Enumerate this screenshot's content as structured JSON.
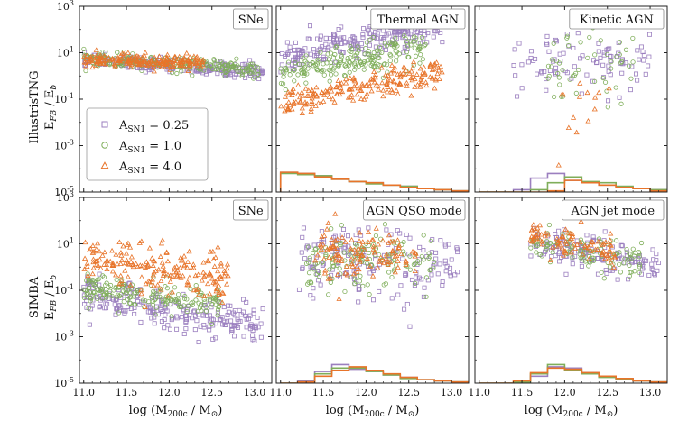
{
  "figure": {
    "row_labels": [
      "IllustrisTNG",
      "SIMBA"
    ],
    "ylabel": "E_FB / E_b",
    "xlabel": "log (M_200c / M_⊙)",
    "legend": {
      "placement": "lower-left of top-left panel",
      "entries": [
        {
          "label": "A_SN1 = 0.25",
          "marker": "square",
          "color": "#9b7fbf"
        },
        {
          "label": "A_SN1 = 1.0",
          "marker": "circle",
          "color": "#7fae5a"
        },
        {
          "label": "A_SN1 = 4.0",
          "marker": "triangle",
          "color": "#e8742a"
        }
      ]
    },
    "colors": {
      "purple": "#9b7fbf",
      "green": "#7fae5a",
      "orange": "#e8742a"
    }
  },
  "chart_data": [
    {
      "type": "scatter",
      "title": "SNe",
      "row": 0,
      "col": 0,
      "ylog": true,
      "ylim": [
        1e-05,
        1000
      ],
      "xlim": [
        10.95,
        13.2
      ],
      "series": [
        {
          "name": "A_SN1 = 0.25",
          "cloud": {
            "x": [
              11.0,
              13.1
            ],
            "logy_start": 0.7,
            "logy_end": 0.2,
            "spread": 0.15,
            "n": 220
          },
          "color": "#9b7fbf"
        },
        {
          "name": "A_SN1 = 1.0",
          "cloud": {
            "x": [
              11.0,
              13.1
            ],
            "logy_start": 0.75,
            "logy_end": 0.25,
            "spread": 0.15,
            "n": 220
          },
          "color": "#7fae5a"
        },
        {
          "name": "A_SN1 = 4.0",
          "cloud": {
            "x": [
              11.0,
              12.4
            ],
            "logy_start": 0.65,
            "logy_end": 0.6,
            "spread": 0.15,
            "n": 200
          },
          "color": "#e8742a"
        }
      ],
      "histograms": []
    },
    {
      "type": "scatter",
      "title": "Thermal AGN",
      "row": 0,
      "col": 1,
      "ylog": true,
      "ylim": [
        1e-05,
        1000
      ],
      "xlim": [
        10.95,
        13.2
      ],
      "series": [
        {
          "name": "A_SN1 = 0.25",
          "cloud": {
            "x": [
              11.0,
              12.9
            ],
            "logy_start": 0.8,
            "logy_end": 2.2,
            "spread": 0.35,
            "n": 230
          },
          "color": "#9b7fbf"
        },
        {
          "name": "A_SN1 = 1.0",
          "cloud": {
            "x": [
              11.0,
              12.7
            ],
            "logy_start": 0.0,
            "logy_end": 1.3,
            "spread": 0.35,
            "n": 200
          },
          "color": "#7fae5a"
        },
        {
          "name": "A_SN1 = 4.0",
          "cloud": {
            "x": [
              11.0,
              12.9
            ],
            "logy_start": -1.2,
            "logy_end": 0.2,
            "spread": 0.3,
            "n": 210
          },
          "color": "#e8742a"
        }
      ],
      "histograms": [
        {
          "color": "#9b7fbf",
          "edges": [
            11.0,
            11.2,
            11.4,
            11.6,
            11.8,
            12.0,
            12.2,
            12.4,
            12.6,
            12.8,
            13.0,
            13.2
          ],
          "logy": [
            -4.15,
            -4.2,
            -4.3,
            -4.45,
            -4.55,
            -4.6,
            -4.7,
            -4.75,
            -4.85,
            -4.9,
            -4.95
          ]
        },
        {
          "color": "#7fae5a",
          "edges": [
            11.0,
            11.2,
            11.4,
            11.6,
            11.8,
            12.0,
            12.2,
            12.4,
            12.6,
            12.8,
            13.0,
            13.2
          ],
          "logy": [
            -4.2,
            -4.25,
            -4.3,
            -4.45,
            -4.55,
            -4.65,
            -4.7,
            -4.75,
            -4.85,
            -4.9,
            -4.95
          ]
        },
        {
          "color": "#e8742a",
          "edges": [
            11.0,
            11.2,
            11.4,
            11.6,
            11.8,
            12.0,
            12.2,
            12.4,
            12.6,
            12.8,
            13.0,
            13.2
          ],
          "logy": [
            -4.15,
            -4.2,
            -4.35,
            -4.45,
            -4.55,
            -4.6,
            -4.7,
            -4.8,
            -4.85,
            -4.9,
            -4.95
          ]
        }
      ]
    },
    {
      "type": "scatter",
      "title": "Kinetic AGN",
      "row": 0,
      "col": 2,
      "ylog": true,
      "ylim": [
        1e-05,
        1000
      ],
      "xlim": [
        10.95,
        13.2
      ],
      "series": [
        {
          "name": "A_SN1 = 0.25",
          "cloud": {
            "x": [
              11.4,
              13.0
            ],
            "logy_start": 0.5,
            "logy_end": 0.5,
            "spread": 0.6,
            "n": 90
          },
          "color": "#9b7fbf"
        },
        {
          "name": "A_SN1 = 1.0",
          "cloud": {
            "x": [
              11.8,
              12.8
            ],
            "logy_start": 0.3,
            "logy_end": 0.5,
            "spread": 0.8,
            "n": 50
          },
          "color": "#7fae5a"
        },
        {
          "name": "A_SN1 = 4.0",
          "cloud": {
            "x": [
              11.9,
              12.6
            ],
            "logy_start": -1.0,
            "logy_end": -1.5,
            "spread": 1.0,
            "n": 14
          },
          "color": "#e8742a"
        }
      ],
      "histograms": [
        {
          "color": "#9b7fbf",
          "edges": [
            11.0,
            11.2,
            11.4,
            11.6,
            11.8,
            12.0,
            12.2,
            12.4,
            12.6,
            12.8,
            13.0,
            13.2
          ],
          "logy": [
            -5.0,
            -5.0,
            -4.9,
            -4.4,
            -4.2,
            -4.5,
            -4.6,
            -4.7,
            -4.8,
            -4.85,
            -4.9
          ]
        },
        {
          "color": "#7fae5a",
          "edges": [
            11.0,
            11.2,
            11.4,
            11.6,
            11.8,
            12.0,
            12.2,
            12.4,
            12.6,
            12.8,
            13.0,
            13.2
          ],
          "logy": [
            -5.0,
            -5.0,
            -5.0,
            -4.9,
            -4.6,
            -4.35,
            -4.55,
            -4.6,
            -4.75,
            -4.85,
            -4.9
          ]
        },
        {
          "color": "#e8742a",
          "edges": [
            11.0,
            11.2,
            11.4,
            11.6,
            11.8,
            12.0,
            12.2,
            12.4,
            12.6,
            12.8,
            13.0,
            13.2
          ],
          "logy": [
            -5.0,
            -5.0,
            -5.0,
            -5.0,
            -4.95,
            -4.5,
            -4.6,
            -4.7,
            -4.8,
            -4.85,
            -4.95
          ]
        }
      ]
    },
    {
      "type": "scatter",
      "title": "SNe",
      "row": 1,
      "col": 0,
      "ylog": true,
      "ylim": [
        1e-05,
        1000
      ],
      "xlim": [
        10.95,
        13.2
      ],
      "series": [
        {
          "name": "A_SN1 = 0.25",
          "cloud": {
            "x": [
              11.0,
              13.1
            ],
            "logy_start": -1.1,
            "logy_end": -2.6,
            "spread": 0.4,
            "n": 230
          },
          "color": "#9b7fbf"
        },
        {
          "name": "A_SN1 = 1.0",
          "cloud": {
            "x": [
              11.0,
              12.6
            ],
            "logy_start": -0.9,
            "logy_end": -1.7,
            "spread": 0.35,
            "n": 190
          },
          "color": "#7fae5a"
        },
        {
          "name": "A_SN1 = 4.0",
          "cloud": {
            "x": [
              11.0,
              12.7
            ],
            "logy_start": 0.3,
            "logy_end": -0.6,
            "spread": 0.55,
            "n": 200
          },
          "color": "#e8742a"
        }
      ],
      "histograms": []
    },
    {
      "type": "scatter",
      "title": "AGN QSO mode",
      "row": 1,
      "col": 1,
      "ylog": true,
      "ylim": [
        1e-05,
        1000
      ],
      "xlim": [
        10.95,
        13.2
      ],
      "series": [
        {
          "name": "A_SN1 = 0.25",
          "cloud": {
            "x": [
              11.2,
              13.1
            ],
            "logy_start": 0.3,
            "logy_end": 0.0,
            "spread": 0.8,
            "n": 170
          },
          "color": "#9b7fbf"
        },
        {
          "name": "A_SN1 = 1.0",
          "cloud": {
            "x": [
              11.3,
              12.8
            ],
            "logy_start": 0.4,
            "logy_end": 0.3,
            "spread": 0.6,
            "n": 140
          },
          "color": "#7fae5a"
        },
        {
          "name": "A_SN1 = 4.0",
          "cloud": {
            "x": [
              11.4,
              12.6
            ],
            "logy_start": 0.6,
            "logy_end": 0.8,
            "spread": 0.6,
            "n": 120
          },
          "color": "#e8742a"
        }
      ],
      "histograms": [
        {
          "color": "#9b7fbf",
          "edges": [
            11.0,
            11.2,
            11.4,
            11.6,
            11.8,
            12.0,
            12.2,
            12.4,
            12.6,
            12.8,
            13.0,
            13.2
          ],
          "logy": [
            -5.0,
            -4.9,
            -4.5,
            -4.2,
            -4.4,
            -4.5,
            -4.65,
            -4.75,
            -4.85,
            -4.9,
            -4.95
          ]
        },
        {
          "color": "#7fae5a",
          "edges": [
            11.0,
            11.2,
            11.4,
            11.6,
            11.8,
            12.0,
            12.2,
            12.4,
            12.6,
            12.8,
            13.0,
            13.2
          ],
          "logy": [
            -5.0,
            -4.95,
            -4.6,
            -4.35,
            -4.35,
            -4.5,
            -4.65,
            -4.8,
            -4.85,
            -4.9,
            -4.95
          ]
        },
        {
          "color": "#e8742a",
          "edges": [
            11.0,
            11.2,
            11.4,
            11.6,
            11.8,
            12.0,
            12.2,
            12.4,
            12.6,
            12.8,
            13.0,
            13.2
          ],
          "logy": [
            -5.0,
            -4.95,
            -4.7,
            -4.45,
            -4.3,
            -4.45,
            -4.6,
            -4.75,
            -4.85,
            -4.9,
            -4.95
          ]
        }
      ]
    },
    {
      "type": "scatter",
      "title": "AGN jet mode",
      "row": 1,
      "col": 2,
      "ylog": true,
      "ylim": [
        1e-05,
        1000
      ],
      "xlim": [
        10.95,
        13.2
      ],
      "series": [
        {
          "name": "A_SN1 = 0.25",
          "cloud": {
            "x": [
              11.6,
              13.1
            ],
            "logy_start": 1.0,
            "logy_end": 0.1,
            "spread": 0.4,
            "n": 140
          },
          "color": "#9b7fbf"
        },
        {
          "name": "A_SN1 = 1.0",
          "cloud": {
            "x": [
              11.6,
              12.9
            ],
            "logy_start": 1.1,
            "logy_end": 0.3,
            "spread": 0.35,
            "n": 110
          },
          "color": "#7fae5a"
        },
        {
          "name": "A_SN1 = 4.0",
          "cloud": {
            "x": [
              11.6,
              12.6
            ],
            "logy_start": 1.3,
            "logy_end": 0.6,
            "spread": 0.3,
            "n": 90
          },
          "color": "#e8742a"
        }
      ],
      "histograms": [
        {
          "color": "#9b7fbf",
          "edges": [
            11.0,
            11.2,
            11.4,
            11.6,
            11.8,
            12.0,
            12.2,
            12.4,
            12.6,
            12.8,
            13.0,
            13.2
          ],
          "logy": [
            -5.0,
            -5.0,
            -4.95,
            -4.7,
            -4.3,
            -4.35,
            -4.55,
            -4.7,
            -4.8,
            -4.9,
            -4.95
          ]
        },
        {
          "color": "#7fae5a",
          "edges": [
            11.0,
            11.2,
            11.4,
            11.6,
            11.8,
            12.0,
            12.2,
            12.4,
            12.6,
            12.8,
            13.0,
            13.2
          ],
          "logy": [
            -5.0,
            -5.0,
            -4.95,
            -4.6,
            -4.2,
            -4.45,
            -4.6,
            -4.75,
            -4.85,
            -4.9,
            -4.95
          ]
        },
        {
          "color": "#e8742a",
          "edges": [
            11.0,
            11.2,
            11.4,
            11.6,
            11.8,
            12.0,
            12.2,
            12.4,
            12.6,
            12.8,
            13.0,
            13.2
          ],
          "logy": [
            -5.0,
            -5.0,
            -4.9,
            -4.55,
            -4.35,
            -4.4,
            -4.55,
            -4.7,
            -4.8,
            -4.9,
            -4.95
          ]
        }
      ]
    }
  ],
  "axes": {
    "x_ticks": [
      "11.0",
      "11.5",
      "12.0",
      "12.5",
      "13.0"
    ],
    "x_tick_values": [
      11.0,
      11.5,
      12.0,
      12.5,
      13.0
    ],
    "y_ticks": [
      "10^-5",
      "10^-3",
      "10^-1",
      "10^1",
      "10^3"
    ],
    "y_tick_values": [
      -5,
      -3,
      -1,
      1,
      3
    ]
  }
}
